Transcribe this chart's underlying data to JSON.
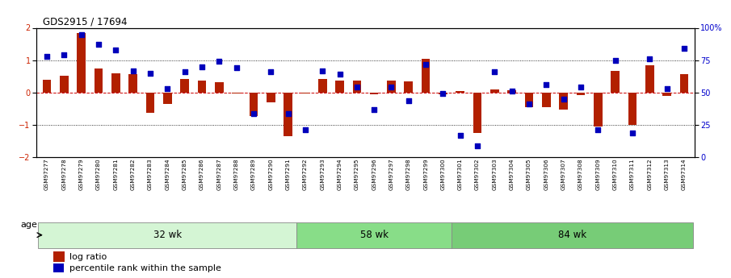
{
  "title": "GDS2915 / 17694",
  "samples": [
    "GSM97277",
    "GSM97278",
    "GSM97279",
    "GSM97280",
    "GSM97281",
    "GSM97282",
    "GSM97283",
    "GSM97284",
    "GSM97285",
    "GSM97286",
    "GSM97287",
    "GSM97288",
    "GSM97289",
    "GSM97290",
    "GSM97291",
    "GSM97292",
    "GSM97293",
    "GSM97294",
    "GSM97295",
    "GSM97296",
    "GSM97297",
    "GSM97298",
    "GSM97299",
    "GSM97300",
    "GSM97301",
    "GSM97302",
    "GSM97303",
    "GSM97304",
    "GSM97305",
    "GSM97306",
    "GSM97307",
    "GSM97308",
    "GSM97309",
    "GSM97310",
    "GSM97311",
    "GSM97312",
    "GSM97313",
    "GSM97314"
  ],
  "log_ratio": [
    0.4,
    0.52,
    1.85,
    0.75,
    0.6,
    0.58,
    -0.62,
    -0.35,
    0.43,
    0.37,
    0.33,
    -0.03,
    -0.72,
    -0.3,
    -1.35,
    -0.03,
    0.43,
    0.37,
    0.37,
    -0.05,
    0.38,
    0.35,
    1.05,
    -0.05,
    0.05,
    -1.25,
    0.1,
    0.07,
    -0.45,
    -0.45,
    -0.52,
    -0.07,
    -1.05,
    0.68,
    -1.0,
    0.85,
    -0.1,
    0.58
  ],
  "percentile": [
    78,
    79,
    95,
    87,
    83,
    67,
    65,
    53,
    66,
    70,
    74,
    69,
    34,
    66,
    34,
    21,
    67,
    64,
    54,
    37,
    54,
    44,
    72,
    49,
    17,
    9,
    66,
    51,
    41,
    56,
    45,
    54,
    21,
    75,
    19,
    76,
    53,
    84
  ],
  "groups": [
    {
      "label": "32 wk",
      "start": 0,
      "end": 15,
      "color": "#d4f5d4"
    },
    {
      "label": "58 wk",
      "start": 15,
      "end": 24,
      "color": "#88dd88"
    },
    {
      "label": "84 wk",
      "start": 24,
      "end": 38,
      "color": "#77cc77"
    }
  ],
  "ylim": [
    -2.0,
    2.0
  ],
  "y_ticks_left": [
    -2,
    -1,
    0,
    1,
    2
  ],
  "y_ticks_right_vals": [
    0,
    25,
    50,
    75,
    100
  ],
  "y_ticks_right_labels": [
    "0",
    "25",
    "50",
    "75",
    "100%"
  ],
  "bar_color": "#b22000",
  "dot_color": "#0000bb",
  "age_label": "age",
  "legend_bar": "log ratio",
  "legend_dot": "percentile rank within the sample"
}
